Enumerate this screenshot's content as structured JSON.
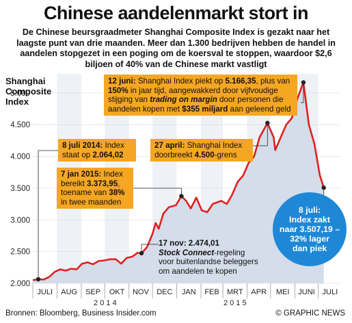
{
  "title": "Chinese aandelenmarkt stort in",
  "subtitle": "De Chinese beursgraadmeter Shanghai Composite Index is gezakt naar het laagste punt van drie maanden. Meer dan 1.300 bedrijven hebben de handel in aandelen stopgezet in een poging om de koersval te stoppen, waardoor $2,6 biljoen of 40% van de Chinese markt vastligt",
  "colors": {
    "area": "#d4dde9",
    "line": "#e02020",
    "callout": "#f5a623",
    "bubble": "#1e88d6",
    "alt_band": "#eef1f6"
  },
  "chart_data": {
    "type": "area",
    "ylabel": "Shanghai Composite Index",
    "yticks": [
      "2.000",
      "2.500",
      "3.000",
      "3.500",
      "4.000",
      "4.500",
      "5.000"
    ],
    "ylim": [
      2000,
      5300
    ],
    "grid": true,
    "x_months": [
      "JULI",
      "AUG",
      "SEP",
      "OKT",
      "NOV",
      "DEC",
      "JAN",
      "FEB",
      "MRT",
      "APR",
      "MEI",
      "JUNI",
      "JULI"
    ],
    "x_years": [
      "2 0 1 4",
      "2 0 1 5"
    ],
    "series": [
      {
        "x": [
          "2014-07-01",
          "2014-07-08",
          "2014-07-15",
          "2014-07-22",
          "2014-07-29",
          "2014-08-05",
          "2014-08-12",
          "2014-08-19",
          "2014-08-26",
          "2014-09-02",
          "2014-09-09",
          "2014-09-16",
          "2014-09-23",
          "2014-09-30",
          "2014-10-08",
          "2014-10-15",
          "2014-10-22",
          "2014-10-29",
          "2014-11-05",
          "2014-11-12",
          "2014-11-17",
          "2014-11-24",
          "2014-12-01",
          "2014-12-05",
          "2014-12-09",
          "2014-12-15",
          "2014-12-22",
          "2014-12-31",
          "2015-01-07",
          "2015-01-13",
          "2015-01-19",
          "2015-01-26",
          "2015-02-02",
          "2015-02-09",
          "2015-02-16",
          "2015-02-27",
          "2015-03-06",
          "2015-03-13",
          "2015-03-20",
          "2015-03-27",
          "2015-04-03",
          "2015-04-10",
          "2015-04-17",
          "2015-04-27",
          "2015-05-05",
          "2015-05-07",
          "2015-05-14",
          "2015-05-21",
          "2015-05-28",
          "2015-06-04",
          "2015-06-12",
          "2015-06-19",
          "2015-06-26",
          "2015-07-03",
          "2015-07-08"
        ],
        "values": [
          2050,
          2064,
          2060,
          2100,
          2180,
          2220,
          2200,
          2230,
          2220,
          2310,
          2330,
          2300,
          2350,
          2360,
          2380,
          2380,
          2310,
          2400,
          2420,
          2480,
          2474,
          2570,
          2780,
          2950,
          2860,
          3100,
          3200,
          3230,
          3374,
          3300,
          3180,
          3350,
          3150,
          3120,
          3250,
          3300,
          3250,
          3400,
          3600,
          3700,
          3900,
          4000,
          4300,
          4527,
          4300,
          4100,
          4300,
          4500,
          4600,
          4900,
          5166,
          4500,
          4200,
          3700,
          3507
        ]
      }
    ],
    "annotations": [
      {
        "date": "2015-06-12",
        "value": 5166,
        "text": [
          "12 juni: ",
          "Shanghai Index piekt op ",
          "5.166,35",
          ", plus van ",
          "150%",
          " in jaar tijd, aangewakkerd door vijfvoudige stijging van ",
          "trading on margin",
          " door personen die aandelen kopen met ",
          "$355 miljard",
          " aan geleend geld"
        ]
      },
      {
        "date": "2014-07-08",
        "value": 2064,
        "text": [
          "8 juli 2014:",
          " Index staat op ",
          "2.064,02"
        ]
      },
      {
        "date": "2015-04-27",
        "value": 4527,
        "text": [
          "27 april:",
          " Shanghai Index doorbreekt ",
          "4.500",
          "-grens"
        ]
      },
      {
        "date": "2015-01-07",
        "value": 3374,
        "text": [
          "7 jan 2015:",
          " Index bereikt ",
          "3.373,95",
          ", toename van ",
          "38%",
          " in twee maanden"
        ]
      },
      {
        "date": "2014-11-17",
        "value": 2474,
        "text": [
          "17 nov: 2.474,01",
          "Stock Connect",
          "-regeling voor buitenlandse beleggers om aandelen te kopen"
        ]
      },
      {
        "date": "2015-07-08",
        "value": 3507,
        "text": [
          "8 juli:",
          "Index zakt",
          "naar 3.507,19 –",
          "32% lager",
          "dan piek"
        ]
      }
    ]
  },
  "footer": {
    "source": "Bronnen: Bloomberg, Business Insider.com",
    "credit": "© GRAPHIC NEWS"
  }
}
